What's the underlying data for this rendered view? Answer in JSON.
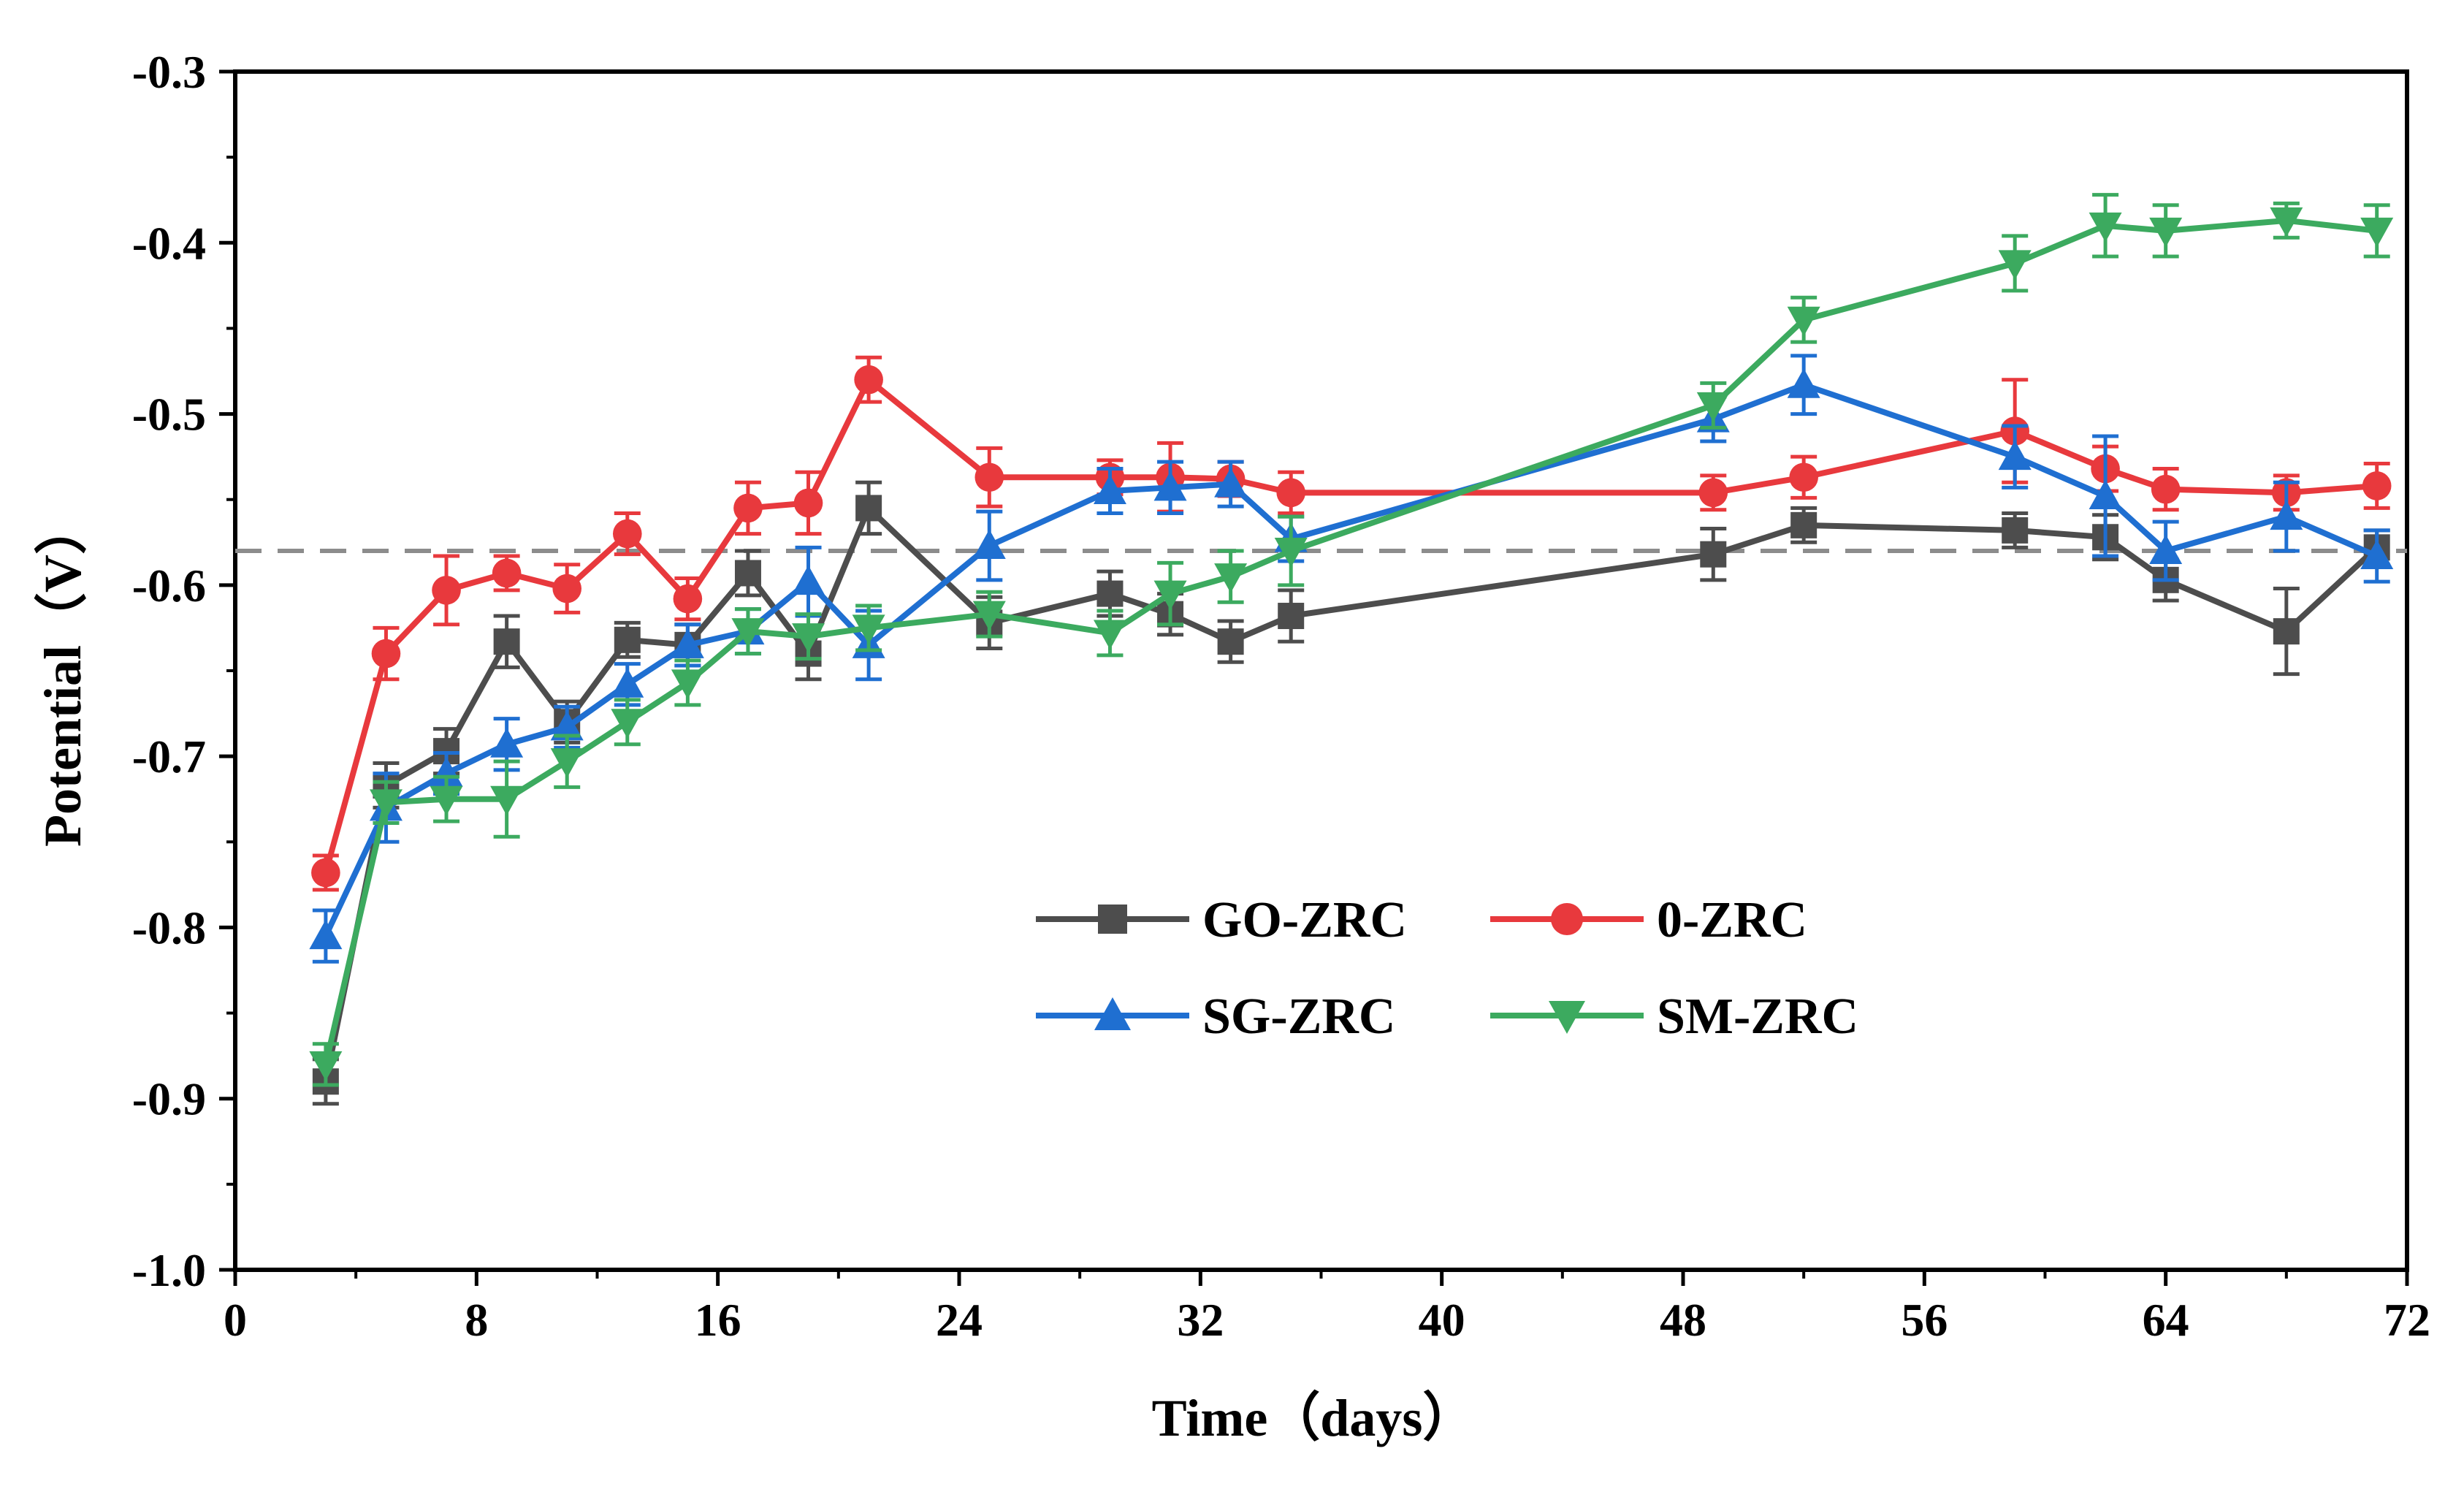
{
  "chart_data": {
    "type": "line",
    "xlabel": "Time（days）",
    "ylabel": "Potential（V）",
    "xlim": [
      0,
      72
    ],
    "ylim": [
      -1.0,
      -0.3
    ],
    "x_ticks": [
      0,
      8,
      16,
      24,
      32,
      40,
      48,
      56,
      64,
      72
    ],
    "y_ticks": [
      -1.0,
      -0.9,
      -0.8,
      -0.7,
      -0.6,
      -0.5,
      -0.4,
      -0.3
    ],
    "x_tick_labels": [
      "0",
      "8",
      "16",
      "24",
      "32",
      "40",
      "48",
      "56",
      "64",
      "72"
    ],
    "y_tick_labels": [
      "-1.0",
      "-0.9",
      "-0.8",
      "-0.7",
      "-0.6",
      "-0.5",
      "-0.4",
      "-0.3"
    ],
    "reference_line": {
      "y": -0.58,
      "style": "dashed",
      "color": "#8c8c8c"
    },
    "grid": false,
    "legend_position": "lower-center",
    "series": [
      {
        "name": "GO-ZRC",
        "color": "#4d4d4d",
        "marker": "square",
        "x": [
          3,
          5,
          7,
          9,
          11,
          13,
          15,
          17,
          19,
          21,
          25,
          29,
          31,
          33,
          35,
          49,
          52,
          59,
          62,
          64,
          68,
          71
        ],
        "y": [
          -0.89,
          -0.717,
          -0.697,
          -0.633,
          -0.68,
          -0.632,
          -0.635,
          -0.593,
          -0.64,
          -0.555,
          -0.622,
          -0.605,
          -0.617,
          -0.633,
          -0.618,
          -0.582,
          -0.565,
          -0.568,
          -0.572,
          -0.597,
          -0.627,
          -0.578
        ],
        "err": [
          0.013,
          0.013,
          0.013,
          0.015,
          0.012,
          0.01,
          0.012,
          0.013,
          0.015,
          0.015,
          0.015,
          0.013,
          0.012,
          0.012,
          0.015,
          0.015,
          0.01,
          0.01,
          0.013,
          0.012,
          0.025,
          0.01
        ]
      },
      {
        "name": "0-ZRC",
        "color": "#e8393d",
        "marker": "circle",
        "x": [
          3,
          5,
          7,
          9,
          11,
          13,
          15,
          17,
          19,
          21,
          25,
          29,
          31,
          33,
          35,
          49,
          52,
          59,
          62,
          64,
          68,
          71
        ],
        "y": [
          -0.768,
          -0.64,
          -0.603,
          -0.593,
          -0.602,
          -0.57,
          -0.608,
          -0.555,
          -0.552,
          -0.48,
          -0.537,
          -0.537,
          -0.537,
          -0.538,
          -0.546,
          -0.546,
          -0.537,
          -0.51,
          -0.532,
          -0.544,
          -0.546,
          -0.542
        ],
        "err": [
          0.01,
          0.015,
          0.02,
          0.01,
          0.014,
          0.012,
          0.012,
          0.015,
          0.018,
          0.013,
          0.017,
          0.01,
          0.02,
          0.01,
          0.012,
          0.01,
          0.012,
          0.03,
          0.013,
          0.012,
          0.01,
          0.013
        ]
      },
      {
        "name": "SG-ZRC",
        "color": "#1f6fd1",
        "marker": "triangle-up",
        "x": [
          3,
          5,
          7,
          9,
          11,
          13,
          15,
          17,
          19,
          21,
          25,
          29,
          31,
          33,
          35,
          49,
          52,
          59,
          62,
          64,
          68,
          71
        ],
        "y": [
          -0.805,
          -0.73,
          -0.71,
          -0.693,
          -0.683,
          -0.658,
          -0.635,
          -0.627,
          -0.598,
          -0.635,
          -0.577,
          -0.545,
          -0.543,
          -0.541,
          -0.573,
          -0.503,
          -0.483,
          -0.525,
          -0.548,
          -0.58,
          -0.56,
          -0.583
        ],
        "err": [
          0.015,
          0.02,
          0.012,
          0.015,
          0.012,
          0.012,
          0.012,
          0.013,
          0.02,
          0.02,
          0.02,
          0.013,
          0.015,
          0.013,
          0.013,
          0.013,
          0.017,
          0.018,
          0.035,
          0.017,
          0.02,
          0.015
        ]
      },
      {
        "name": "SM-ZRC",
        "color": "#3caa5f",
        "marker": "triangle-down",
        "x": [
          3,
          5,
          7,
          9,
          11,
          13,
          15,
          17,
          19,
          21,
          25,
          29,
          31,
          33,
          35,
          49,
          52,
          59,
          62,
          64,
          68,
          71
        ],
        "y": [
          -0.88,
          -0.727,
          -0.725,
          -0.725,
          -0.703,
          -0.68,
          -0.657,
          -0.627,
          -0.63,
          -0.625,
          -0.617,
          -0.628,
          -0.605,
          -0.595,
          -0.58,
          -0.495,
          -0.445,
          -0.412,
          -0.39,
          -0.393,
          -0.387,
          -0.393
        ],
        "err": [
          0.012,
          0.012,
          0.013,
          0.022,
          0.015,
          0.013,
          0.013,
          0.013,
          0.013,
          0.013,
          0.013,
          0.013,
          0.018,
          0.015,
          0.02,
          0.013,
          0.013,
          0.016,
          0.018,
          0.015,
          0.01,
          0.015
        ]
      }
    ]
  }
}
